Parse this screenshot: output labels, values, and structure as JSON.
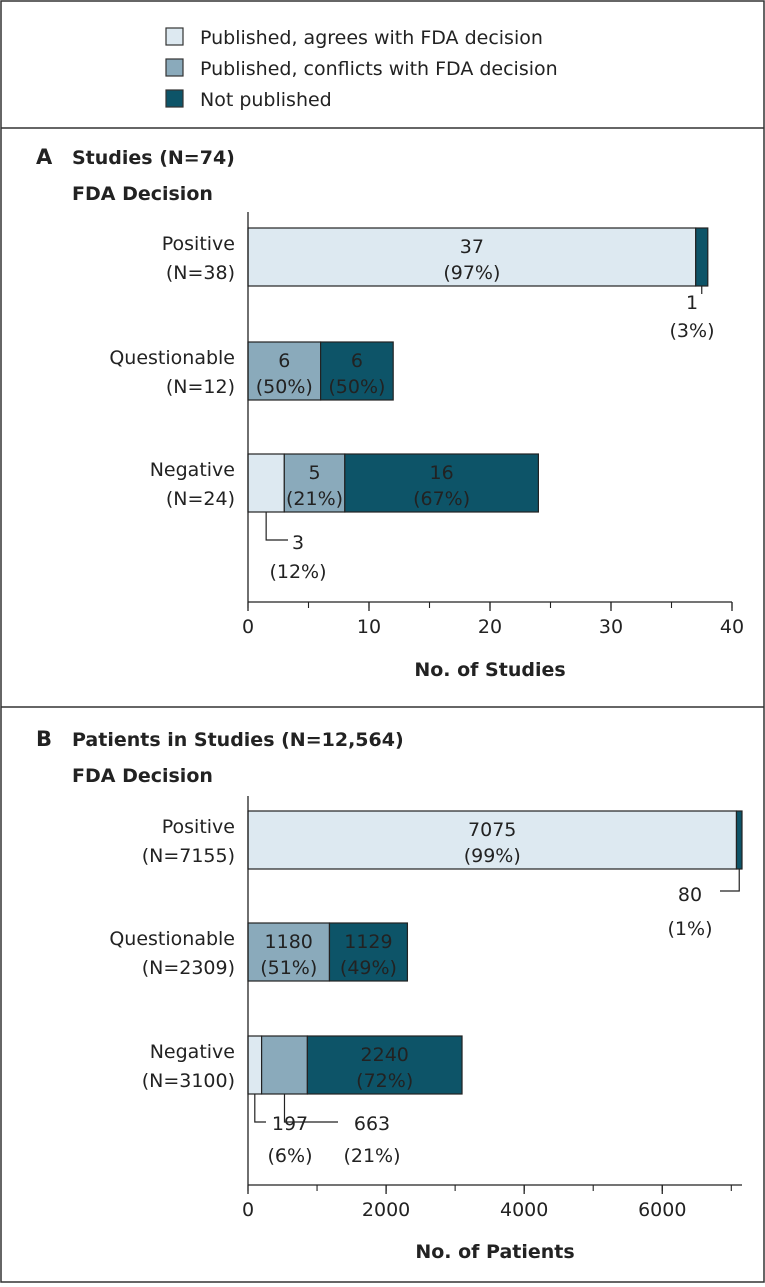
{
  "legend": {
    "items": [
      {
        "label": "Published, agrees with FDA decision",
        "color": "#dde9f1"
      },
      {
        "label": "Published, conflicts with FDA decision",
        "color": "#8aaabb"
      },
      {
        "label": "Not published",
        "color": "#0d5468"
      }
    ]
  },
  "chart_data": [
    {
      "type": "bar",
      "stacked": true,
      "orientation": "horizontal",
      "panel": "A",
      "title": "Studies (N=74)",
      "subtitle": "FDA Decision",
      "xlabel": "No. of Studies",
      "xlim": [
        0,
        40
      ],
      "xticks": [
        0,
        10,
        20,
        30,
        40
      ],
      "xtick_labels": [
        "0",
        "10",
        "20",
        "30",
        "40"
      ],
      "categories": [
        {
          "name": "Positive",
          "n": "(N=38)"
        },
        {
          "name": "Questionable",
          "n": "(N=12)"
        },
        {
          "name": "Negative",
          "n": "(N=24)"
        }
      ],
      "series": [
        {
          "name": "Published, agrees with FDA decision",
          "values": [
            37,
            0,
            3
          ],
          "labels": [
            [
              "37",
              "(97%)"
            ],
            null,
            [
              "3",
              "(12%)"
            ]
          ]
        },
        {
          "name": "Published, conflicts with FDA decision",
          "values": [
            0,
            6,
            5
          ],
          "labels": [
            null,
            [
              "6",
              "(50%)"
            ],
            [
              "5",
              "(21%)"
            ]
          ]
        },
        {
          "name": "Not published",
          "values": [
            1,
            6,
            16
          ],
          "labels": [
            [
              "1",
              "(3%)"
            ],
            [
              "6",
              "(50%)"
            ],
            [
              "16",
              "(67%)"
            ]
          ]
        }
      ]
    },
    {
      "type": "bar",
      "stacked": true,
      "orientation": "horizontal",
      "panel": "B",
      "title": "Patients in Studies (N=12,564)",
      "subtitle": "FDA Decision",
      "xlabel": "No. of Patients",
      "xlim": [
        0,
        7155
      ],
      "xticks": [
        0,
        2000,
        4000,
        6000
      ],
      "xtick_labels": [
        "0",
        "2000",
        "4000",
        "6000"
      ],
      "categories": [
        {
          "name": "Positive",
          "n": "(N=7155)"
        },
        {
          "name": "Questionable",
          "n": "(N=2309)"
        },
        {
          "name": "Negative",
          "n": "(N=3100)"
        }
      ],
      "series": [
        {
          "name": "Published, agrees with FDA decision",
          "values": [
            7075,
            0,
            197
          ],
          "labels": [
            [
              "7075",
              "(99%)"
            ],
            null,
            [
              "197",
              "(6%)"
            ]
          ]
        },
        {
          "name": "Published, conflicts with FDA decision",
          "values": [
            0,
            1180,
            663
          ],
          "labels": [
            null,
            [
              "1180",
              "(51%)"
            ],
            [
              "663",
              "(21%)"
            ]
          ]
        },
        {
          "name": "Not published",
          "values": [
            80,
            1129,
            2240
          ],
          "labels": [
            [
              "80",
              "(1%)"
            ],
            [
              "1129",
              "(49%)"
            ],
            [
              "2240",
              "(72%)"
            ]
          ]
        }
      ]
    }
  ]
}
